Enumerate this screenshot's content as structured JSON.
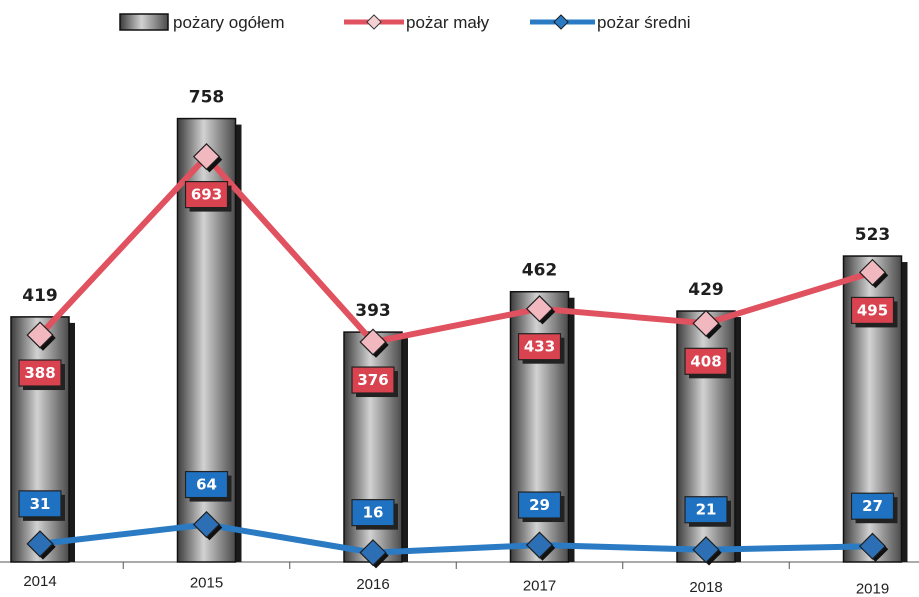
{
  "chart_data": {
    "type": "bar",
    "title": "",
    "xlabel": "",
    "ylabel": "",
    "ylim": [
      0,
      800
    ],
    "grid": false,
    "legend_placement": "top",
    "categories": [
      "2014",
      "2015",
      "2016",
      "2017",
      "2018",
      "2019"
    ],
    "series": [
      {
        "name": "pożary ogółem",
        "kind": "bar",
        "values": [
          419,
          758,
          393,
          462,
          429,
          523
        ],
        "color": "#7a7a7a"
      },
      {
        "name": "pożar mały",
        "kind": "line",
        "values": [
          388,
          693,
          376,
          433,
          408,
          495
        ],
        "color": "#e0525f"
      },
      {
        "name": "pożar średni",
        "kind": "line",
        "values": [
          31,
          64,
          16,
          29,
          21,
          27
        ],
        "color": "#2a7bc4"
      }
    ],
    "colors": {
      "bar_dark": "#3a3a3a",
      "bar_light": "#cfcfcf",
      "badge_red": "#d9424f",
      "badge_blue": "#1f72c2",
      "marker": "#2a2a2a"
    }
  }
}
